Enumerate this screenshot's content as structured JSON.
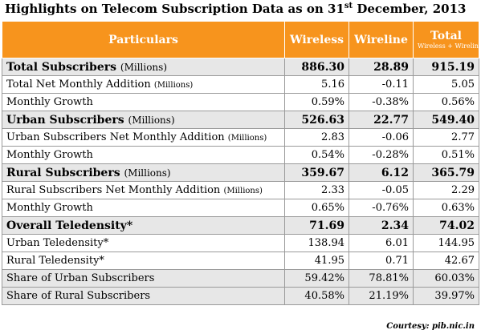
{
  "title": {
    "prefix": "Highlights on Telecom Subscription Data as on 31",
    "sup": "st",
    "suffix": " December, 2013"
  },
  "header": {
    "particulars": "Particulars",
    "wireless": "Wireless",
    "wireline": "Wireline",
    "total": "Total",
    "total_sub": "Wireless + Wireline"
  },
  "rows": [
    {
      "label": "Total Subscribers",
      "unit": "(Millions)",
      "wireless": "886.30",
      "wireline": "28.89",
      "total": "915.19"
    },
    {
      "label": "Total Net Monthly Addition",
      "unit": "(Millions)",
      "wireless": "5.16",
      "wireline": "-0.11",
      "total": "5.05"
    },
    {
      "label": "Monthly Growth",
      "unit": "",
      "wireless": "0.59%",
      "wireline": "-0.38%",
      "total": "0.56%"
    },
    {
      "label": "Urban Subscribers",
      "unit": "(Millions)",
      "wireless": "526.63",
      "wireline": "22.77",
      "total": "549.40"
    },
    {
      "label": "Urban Subscribers Net Monthly Addition",
      "unit": "(Millions)",
      "wireless": "2.83",
      "wireline": "-0.06",
      "total": "2.77"
    },
    {
      "label": "Monthly Growth",
      "unit": "",
      "wireless": "0.54%",
      "wireline": "-0.28%",
      "total": "0.51%"
    },
    {
      "label": "Rural Subscribers",
      "unit": "(Millions)",
      "wireless": "359.67",
      "wireline": "6.12",
      "total": "365.79"
    },
    {
      "label": "Rural Subscribers Net Monthly Addition",
      "unit": "(Millions)",
      "wireless": "2.33",
      "wireline": "-0.05",
      "total": "2.29"
    },
    {
      "label": "Monthly Growth",
      "unit": "",
      "wireless": "0.65%",
      "wireline": "-0.76%",
      "total": "0.63%"
    },
    {
      "label": "Overall Teledensity*",
      "unit": "",
      "wireless": "71.69",
      "wireline": "2.34",
      "total": "74.02"
    },
    {
      "label": "Urban Teledensity*",
      "unit": "",
      "wireless": "138.94",
      "wireline": "6.01",
      "total": "144.95"
    },
    {
      "label": "Rural Teledensity*",
      "unit": "",
      "wireless": "41.95",
      "wireline": "0.71",
      "total": "42.67"
    },
    {
      "label": "Share of Urban Subscribers",
      "unit": "",
      "wireless": "59.42%",
      "wireline": "78.81%",
      "total": "60.03%"
    },
    {
      "label": "Share of Rural Subscribers",
      "unit": "",
      "wireless": "40.58%",
      "wireline": "21.19%",
      "total": "39.97%"
    }
  ],
  "courtesy": "Courtesy: pib.nic.in",
  "colors": {
    "header_bg": "#f7941d",
    "shade_bg": "#e7e7e7",
    "header_text": "#ffffff"
  }
}
